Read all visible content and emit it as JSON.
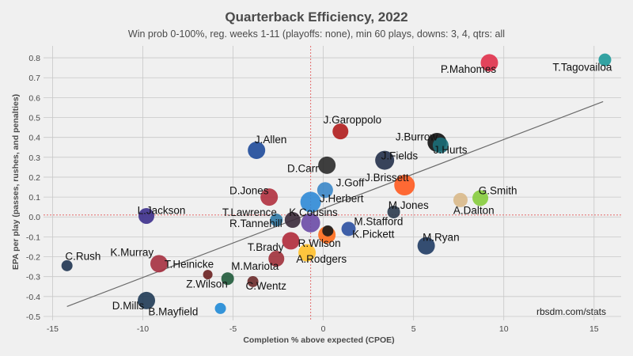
{
  "chart_data": {
    "type": "scatter",
    "title": "Quarterback Efficiency, 2022",
    "subtitle": "Win prob 0-100%, reg. weeks 1-11 (playoffs: none), min 60 plays, downs: 3, 4, qtrs: all",
    "xlabel": "Completion % above expected (CPOE)",
    "ylabel": "EPA per play (passes, rushes, and penalties)",
    "credit": "rbsdm.com/stats",
    "xlim": [
      -15.5,
      16.5
    ],
    "ylim": [
      -0.52,
      0.86
    ],
    "xticks": [
      -15,
      -10,
      -5,
      0,
      5,
      10,
      15
    ],
    "yticks": [
      -0.5,
      -0.4,
      -0.3,
      -0.2,
      -0.1,
      0.0,
      0.1,
      0.2,
      0.3,
      0.4,
      0.5,
      0.6,
      0.7,
      0.8
    ],
    "xtick_labels": [
      "-15",
      "-10",
      "-5",
      "0",
      "5",
      "10",
      "15"
    ],
    "ytick_labels": [
      "-0.5",
      "-0.4",
      "-0.3",
      "-0.2",
      "-0.1",
      "0.0",
      "0.1",
      "0.2",
      "0.3",
      "0.4",
      "0.5",
      "0.6",
      "0.7",
      "0.8"
    ],
    "grid": true,
    "mean_lines": {
      "x": -0.7,
      "y": 0.01,
      "color": "#e36b6b"
    },
    "trendline": {
      "x": [
        -14.2,
        15.5
      ],
      "y": [
        -0.45,
        0.58
      ],
      "color": "#6a6a6a"
    },
    "points": [
      {
        "name": "T.Tagovailoa",
        "x": 15.6,
        "y": 0.79,
        "size": 8,
        "color": "#1f9a9a"
      },
      {
        "name": "P.Mahomes",
        "x": 9.2,
        "y": 0.775,
        "size": 11,
        "color": "#e0304a"
      },
      {
        "name": "J.Garoppolo",
        "x": 0.95,
        "y": 0.43,
        "size": 10,
        "color": "#b01c1c"
      },
      {
        "name": "J.Burrow",
        "x": 6.3,
        "y": 0.375,
        "size": 12,
        "color": "#111111"
      },
      {
        "name": "J.Hurts",
        "x": 6.5,
        "y": 0.36,
        "size": 10,
        "color": "#1c6e78"
      },
      {
        "name": "J.Allen",
        "x": -3.7,
        "y": 0.335,
        "size": 11,
        "color": "#1e4a9a"
      },
      {
        "name": "J.Fields",
        "x": 3.4,
        "y": 0.285,
        "size": 12,
        "color": "#24304a"
      },
      {
        "name": "D.Carr",
        "x": 0.2,
        "y": 0.26,
        "size": 11,
        "color": "#2a2a2a"
      },
      {
        "name": "J.Brissett",
        "x": 4.5,
        "y": 0.16,
        "size": 13,
        "color": "#ff5a1f"
      },
      {
        "name": "J.Goff",
        "x": 0.1,
        "y": 0.135,
        "size": 10,
        "color": "#3a86c8"
      },
      {
        "name": "G.Smith",
        "x": 8.7,
        "y": 0.095,
        "size": 10,
        "color": "#86cc3c"
      },
      {
        "name": "A.Dalton",
        "x": 7.6,
        "y": 0.085,
        "size": 9,
        "color": "#d9b98a"
      },
      {
        "name": "D.Jones",
        "x": -3.0,
        "y": 0.1,
        "size": 11,
        "color": "#b0303e"
      },
      {
        "name": "J.Herbert",
        "x": -0.7,
        "y": 0.075,
        "size": 13,
        "color": "#2f8ad6"
      },
      {
        "name": "M.Jones",
        "x": 3.9,
        "y": 0.025,
        "size": 8,
        "color": "#2a3a4c"
      },
      {
        "name": "L.Jackson",
        "x": -9.8,
        "y": 0.005,
        "size": 10,
        "color": "#3c2f8c"
      },
      {
        "name": "T.Lawrence",
        "x": -2.6,
        "y": -0.015,
        "size": 8,
        "color": "#2f7aa6"
      },
      {
        "name": "K.Cousins",
        "x": -1.7,
        "y": -0.015,
        "size": 10,
        "color": "#3a2a3a"
      },
      {
        "name": "R.Tannehill",
        "x": -0.7,
        "y": -0.03,
        "size": 12,
        "color": "#6a4aa6"
      },
      {
        "name": "M.Stafford",
        "x": 1.4,
        "y": -0.06,
        "size": 9,
        "color": "#2a4fa0"
      },
      {
        "name": "K.Pickett",
        "x": 0.2,
        "y": -0.09,
        "size": 11,
        "color": "#ff6a1a"
      },
      {
        "name": "K.Pickett-dot",
        "x": 0.25,
        "y": -0.07,
        "size": 7,
        "color": "#1a1a1a"
      },
      {
        "name": "M.Ryan",
        "x": 5.7,
        "y": -0.145,
        "size": 11,
        "color": "#1f3b63"
      },
      {
        "name": "R.Wilson",
        "x": -1.8,
        "y": -0.12,
        "size": 11,
        "color": "#b02a3a"
      },
      {
        "name": "A.Rodgers",
        "x": -0.9,
        "y": -0.18,
        "size": 11,
        "color": "#ffc02a"
      },
      {
        "name": "T.Brady",
        "x": -2.6,
        "y": -0.21,
        "size": 10,
        "color": "#a0303a"
      },
      {
        "name": "K.Murray",
        "x": -9.1,
        "y": -0.235,
        "size": 11,
        "color": "#a53040"
      },
      {
        "name": "C.Rush",
        "x": -14.2,
        "y": -0.245,
        "size": 7,
        "color": "#1f3451"
      },
      {
        "name": "T.Heinicke",
        "x": -6.4,
        "y": -0.29,
        "size": 6,
        "color": "#6a2020"
      },
      {
        "name": "M.Mariota",
        "x": -5.3,
        "y": -0.31,
        "size": 8,
        "color": "#1f5a3a"
      },
      {
        "name": "C.Wentz",
        "x": -3.9,
        "y": -0.325,
        "size": 7,
        "color": "#6a2a2a"
      },
      {
        "name": "D.Mills",
        "x": -9.8,
        "y": -0.42,
        "size": 11,
        "color": "#1f3a55"
      },
      {
        "name": "B.Mayfield",
        "x": -5.7,
        "y": -0.46,
        "size": 7,
        "color": "#1f8ad6"
      }
    ],
    "labels": [
      {
        "text": "T.Tagovailoa",
        "x": 12.7,
        "y": 0.735
      },
      {
        "text": "P.Mahomes",
        "x": 6.5,
        "y": 0.725
      },
      {
        "text": "J.Garoppolo",
        "x": 0.0,
        "y": 0.47
      },
      {
        "text": "J.Burrow",
        "x": 4.0,
        "y": 0.385
      },
      {
        "text": "J.Hurts",
        "x": 6.1,
        "y": 0.32
      },
      {
        "text": "J.Allen",
        "x": -3.8,
        "y": 0.37
      },
      {
        "text": "J.Fields",
        "x": 3.2,
        "y": 0.29
      },
      {
        "text": "D.Carr",
        "x": -2.0,
        "y": 0.225
      },
      {
        "text": "J.Brissett",
        "x": 2.3,
        "y": 0.18
      },
      {
        "text": "J.Goff",
        "x": 0.7,
        "y": 0.155
      },
      {
        "text": "G.Smith",
        "x": 8.6,
        "y": 0.115
      },
      {
        "text": "A.Dalton",
        "x": 7.2,
        "y": 0.015
      },
      {
        "text": "D.Jones",
        "x": -5.2,
        "y": 0.115
      },
      {
        "text": "J.Herbert",
        "x": -0.2,
        "y": 0.075
      },
      {
        "text": "M.Jones",
        "x": 3.6,
        "y": 0.04
      },
      {
        "text": "L.Jackson",
        "x": -10.3,
        "y": 0.015
      },
      {
        "text": "T.Lawrence",
        "x": -5.6,
        "y": 0.005
      },
      {
        "text": "K.Cousins",
        "x": -1.9,
        "y": 0.005
      },
      {
        "text": "R.Tannehill",
        "x": -5.2,
        "y": -0.05
      },
      {
        "text": "M.Stafford",
        "x": 1.7,
        "y": -0.04
      },
      {
        "text": "K.Pickett",
        "x": 1.6,
        "y": -0.105
      },
      {
        "text": "M.Ryan",
        "x": 5.5,
        "y": -0.12
      },
      {
        "text": "R.Wilson",
        "x": -1.4,
        "y": -0.15
      },
      {
        "text": "A.Rodgers",
        "x": -1.5,
        "y": -0.23
      },
      {
        "text": "T.Brady",
        "x": -4.2,
        "y": -0.17
      },
      {
        "text": "K.Murray",
        "x": -11.8,
        "y": -0.195
      },
      {
        "text": "C.Rush",
        "x": -14.3,
        "y": -0.215
      },
      {
        "text": "T.Heinicke",
        "x": -8.8,
        "y": -0.255
      },
      {
        "text": "M.Mariota",
        "x": -5.1,
        "y": -0.265
      },
      {
        "text": "Z.Wilson",
        "x": -7.6,
        "y": -0.355
      },
      {
        "text": "C.Wentz",
        "x": -4.3,
        "y": -0.365
      },
      {
        "text": "D.Mills",
        "x": -11.7,
        "y": -0.465
      },
      {
        "text": "B.Mayfield",
        "x": -9.7,
        "y": -0.495
      }
    ]
  },
  "colors": {
    "background": "#f0f0f0",
    "grid": "#c8c8c8",
    "text": "#4a4a4a"
  }
}
